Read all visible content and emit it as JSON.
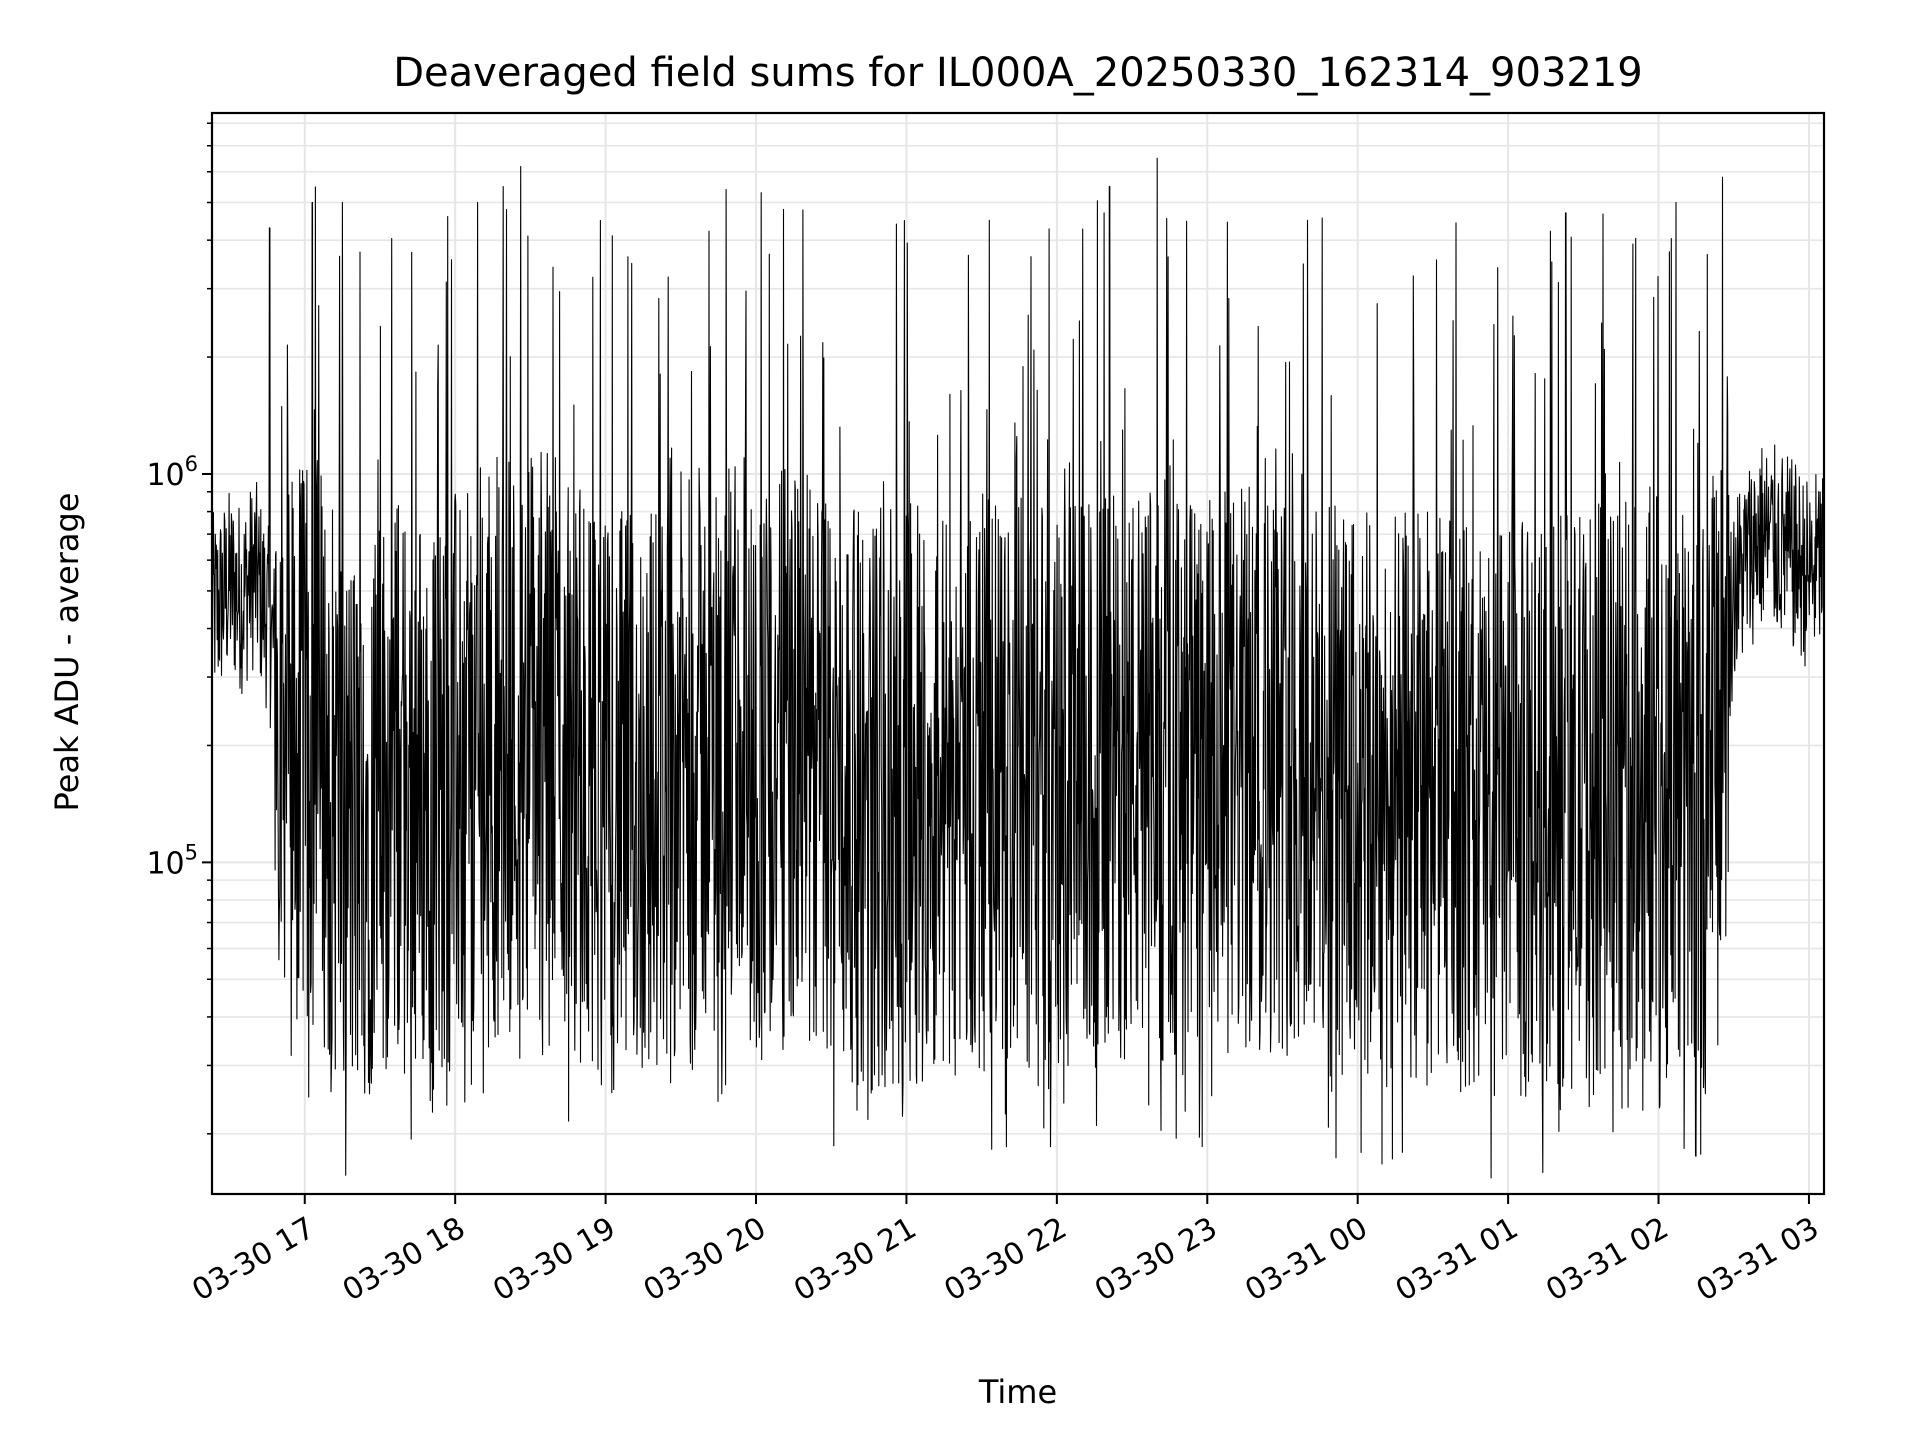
{
  "chart_data": {
    "type": "line",
    "title": "Deaveraged field sums for IL000A_20250330_162314_903219",
    "xlabel": "Time",
    "ylabel": "Peak ADU - average",
    "xscale": "time",
    "yscale": "log",
    "xlim": [
      "2025-03-30T16:23",
      "2025-03-31T03:06"
    ],
    "ylim": [
      14000,
      8500000
    ],
    "grid": "major and minor, light gray",
    "line_color": "#000000",
    "x_tick_labels": [
      "03-30 17",
      "03-30 18",
      "03-30 19",
      "03-30 20",
      "03-30 21",
      "03-30 22",
      "03-30 23",
      "03-31 00",
      "03-31 01",
      "03-31 02",
      "03-31 03"
    ],
    "x_tick_times": [
      "2025-03-30T17:00",
      "2025-03-30T18:00",
      "2025-03-30T19:00",
      "2025-03-30T20:00",
      "2025-03-30T21:00",
      "2025-03-30T22:00",
      "2025-03-30T23:00",
      "2025-03-31T00:00",
      "2025-03-31T01:00",
      "2025-03-31T02:00",
      "2025-03-31T03:00"
    ],
    "y_ticks": [
      {
        "base": "10",
        "exp": "5",
        "value": 100000
      },
      {
        "base": "10",
        "exp": "6",
        "value": 1000000
      }
    ],
    "series": [
      {
        "points": [
          [
            "2025-03-30T16:25",
            450000
          ],
          [
            "2025-03-30T16:30",
            520000
          ],
          [
            "2025-03-30T16:35",
            480000
          ],
          [
            "2025-03-30T16:40",
            560000
          ],
          [
            "2025-03-30T16:45",
            430000
          ],
          [
            "2025-03-30T16:50",
            300000
          ],
          [
            "2025-03-30T16:55",
            200000
          ],
          [
            "2025-03-30T17:00",
            180000
          ],
          [
            "2025-03-30T17:05",
            220000
          ],
          [
            "2025-03-30T17:10",
            160000
          ],
          [
            "2025-03-30T17:15",
            140000
          ],
          [
            "2025-03-30T17:20",
            120000
          ],
          [
            "2025-03-30T17:30",
            150000
          ],
          [
            "2025-03-30T17:40",
            170000
          ],
          [
            "2025-03-30T17:50",
            140000
          ],
          [
            "2025-03-30T18:00",
            160000
          ],
          [
            "2025-03-30T18:10",
            180000
          ],
          [
            "2025-03-30T18:20",
            200000
          ],
          [
            "2025-03-30T18:30",
            230000
          ],
          [
            "2025-03-30T18:40",
            210000
          ],
          [
            "2025-03-30T18:50",
            170000
          ],
          [
            "2025-03-30T19:00",
            140000
          ],
          [
            "2025-03-30T19:15",
            150000
          ],
          [
            "2025-03-30T19:30",
            180000
          ],
          [
            "2025-03-30T19:45",
            200000
          ],
          [
            "2025-03-30T20:00",
            170000
          ],
          [
            "2025-03-30T20:15",
            190000
          ],
          [
            "2025-03-30T20:30",
            160000
          ],
          [
            "2025-03-30T20:45",
            140000
          ],
          [
            "2025-03-30T21:00",
            150000
          ],
          [
            "2025-03-30T21:30",
            160000
          ],
          [
            "2025-03-30T22:00",
            150000
          ],
          [
            "2025-03-30T22:30",
            170000
          ],
          [
            "2025-03-30T23:00",
            160000
          ],
          [
            "2025-03-30T23:30",
            180000
          ],
          [
            "2025-03-31T00:00",
            140000
          ],
          [
            "2025-03-31T00:30",
            150000
          ],
          [
            "2025-03-31T01:00",
            130000
          ],
          [
            "2025-03-31T01:30",
            150000
          ],
          [
            "2025-03-31T02:00",
            160000
          ],
          [
            "2025-03-31T02:20",
            140000
          ],
          [
            "2025-03-31T02:30",
            500000
          ],
          [
            "2025-03-31T02:40",
            700000
          ],
          [
            "2025-03-31T02:50",
            650000
          ],
          [
            "2025-03-31T03:00",
            550000
          ],
          [
            "2025-03-31T03:05",
            600000
          ]
        ]
      }
    ],
    "spikes": [
      [
        "2025-03-30T16:46",
        4300000
      ],
      [
        "2025-03-30T17:03",
        5000000
      ],
      [
        "2025-03-30T17:15",
        5000000
      ],
      [
        "2025-03-30T17:57",
        4600000
      ],
      [
        "2025-03-30T18:09",
        5000000
      ],
      [
        "2025-03-30T18:29",
        4100000
      ],
      [
        "2025-03-30T19:48",
        5400000
      ],
      [
        "2025-03-30T20:02",
        5300000
      ],
      [
        "2025-03-30T20:11",
        4800000
      ],
      [
        "2025-03-30T20:56",
        4400000
      ],
      [
        "2025-03-30T21:33",
        4500000
      ],
      [
        "2025-03-30T22:21",
        5500000
      ],
      [
        "2025-03-30T22:40",
        6500000
      ],
      [
        "2025-03-30T23:40",
        4500000
      ],
      [
        "2025-03-31T01:23",
        4700000
      ],
      [
        "2025-03-31T02:07",
        5000000
      ]
    ]
  }
}
